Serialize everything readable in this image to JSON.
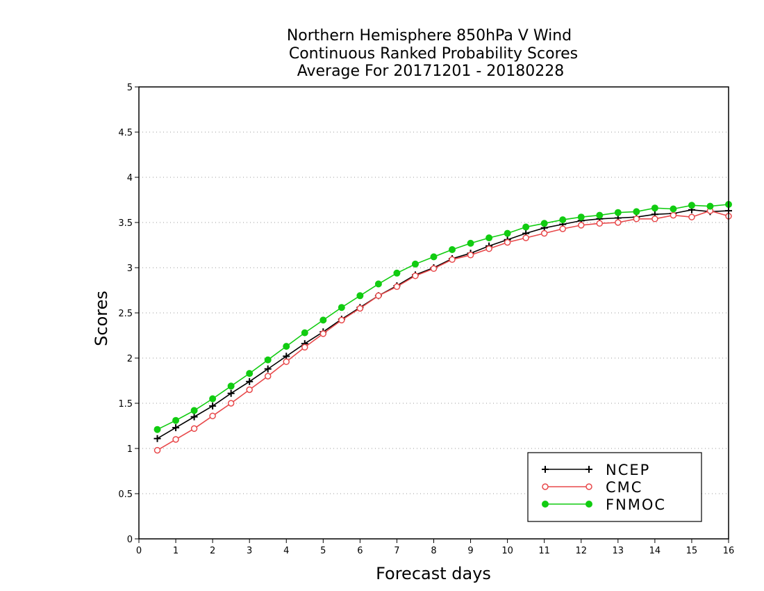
{
  "chart_data": {
    "type": "line",
    "title_lines": [
      "Northern Hemisphere 850hPa V Wind",
      "Continuous Ranked Probability Scores",
      "Average For 20171201 - 20180228"
    ],
    "xlabel": "Forecast days",
    "ylabel": "Scores",
    "xlim": [
      0,
      16
    ],
    "ylim": [
      0,
      5
    ],
    "x_ticks": [
      "0",
      "1",
      "2",
      "3",
      "4",
      "5",
      "6",
      "7",
      "8",
      "9",
      "10",
      "11",
      "12",
      "13",
      "14",
      "15",
      "16"
    ],
    "y_ticks": [
      "0",
      "0.5",
      "1",
      "1.5",
      "2",
      "2.5",
      "3",
      "3.5",
      "4",
      "4.5",
      "5"
    ],
    "grid": "dotted horizontal",
    "legend_position": "bottom-right",
    "x": [
      0.5,
      1,
      1.5,
      2,
      2.5,
      3,
      3.5,
      4,
      4.5,
      5,
      5.5,
      6,
      6.5,
      7,
      7.5,
      8,
      8.5,
      9,
      9.5,
      10,
      10.5,
      11,
      11.5,
      12,
      12.5,
      13,
      13.5,
      14,
      14.5,
      15,
      15.5,
      16
    ],
    "series": [
      {
        "name": "NCEP",
        "color": "#000000",
        "marker": "plus",
        "values": [
          1.11,
          1.23,
          1.35,
          1.47,
          1.61,
          1.74,
          1.88,
          2.02,
          2.16,
          2.29,
          2.43,
          2.56,
          2.69,
          2.8,
          2.92,
          3.0,
          3.1,
          3.16,
          3.24,
          3.31,
          3.38,
          3.44,
          3.48,
          3.52,
          3.54,
          3.55,
          3.56,
          3.59,
          3.6,
          3.64,
          3.62,
          3.63
        ]
      },
      {
        "name": "CMC",
        "color": "#e8484a",
        "marker": "open-circle",
        "values": [
          0.98,
          1.1,
          1.22,
          1.36,
          1.5,
          1.65,
          1.8,
          1.96,
          2.12,
          2.27,
          2.42,
          2.55,
          2.69,
          2.79,
          2.91,
          2.99,
          3.09,
          3.14,
          3.21,
          3.28,
          3.33,
          3.38,
          3.43,
          3.47,
          3.49,
          3.5,
          3.54,
          3.54,
          3.58,
          3.56,
          3.63,
          3.57
        ]
      },
      {
        "name": "FNMOC",
        "color": "#11cc11",
        "marker": "filled-circle",
        "values": [
          1.21,
          1.31,
          1.42,
          1.55,
          1.69,
          1.83,
          1.98,
          2.13,
          2.28,
          2.42,
          2.56,
          2.69,
          2.82,
          2.94,
          3.04,
          3.12,
          3.2,
          3.27,
          3.33,
          3.38,
          3.45,
          3.49,
          3.53,
          3.56,
          3.58,
          3.61,
          3.62,
          3.66,
          3.65,
          3.69,
          3.68,
          3.7
        ]
      }
    ]
  }
}
